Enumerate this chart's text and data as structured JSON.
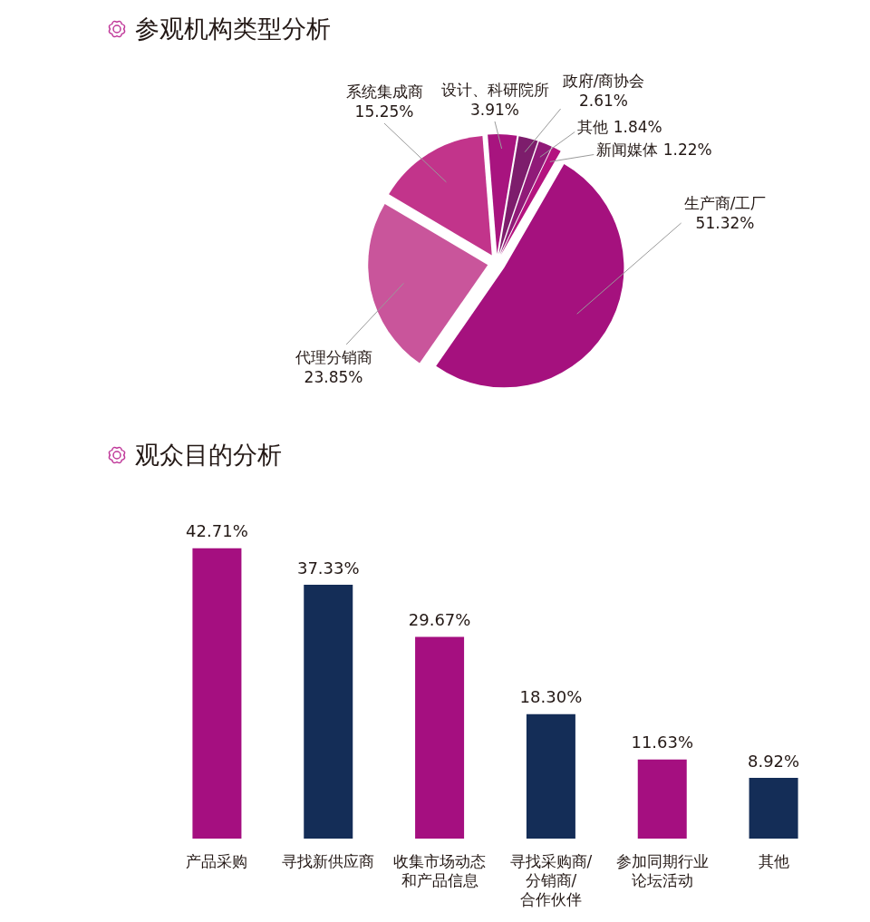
{
  "chart_data": [
    {
      "type": "pie",
      "title": "参观机构类型分析",
      "categories": [
        "生产商/工厂",
        "代理分销商",
        "系统集成商",
        "设计、科研院所",
        "政府/商协会",
        "其他",
        "新闻媒体"
      ],
      "values": [
        51.32,
        23.85,
        15.25,
        3.91,
        2.61,
        1.84,
        1.22
      ],
      "value_labels": [
        "51.32%",
        "23.85%",
        "15.25%",
        "3.91%",
        "2.61%",
        "1.84%",
        "1.22%"
      ],
      "colors": [
        "#a5117e",
        "#c9559b",
        "#c2348b",
        "#a8147f",
        "#7d1d6c",
        "#901a78",
        "#b4137f"
      ]
    },
    {
      "type": "bar",
      "title": "观众目的分析",
      "categories": [
        "产品采购",
        "寻找新供应商",
        "收集市场动态和产品信息",
        "寻找采购商/分销商/合作伙伴",
        "参加同期行业论坛活动",
        "其他"
      ],
      "values": [
        42.71,
        37.33,
        29.67,
        18.3,
        11.63,
        8.92
      ],
      "value_labels": [
        "42.71%",
        "37.33%",
        "29.67%",
        "18.30%",
        "11.63%",
        "8.92%"
      ],
      "colors": [
        "#a50f80",
        "#142d57",
        "#a50f80",
        "#142d57",
        "#a50f80",
        "#142d57"
      ],
      "tick_labels": "x"
    }
  ]
}
